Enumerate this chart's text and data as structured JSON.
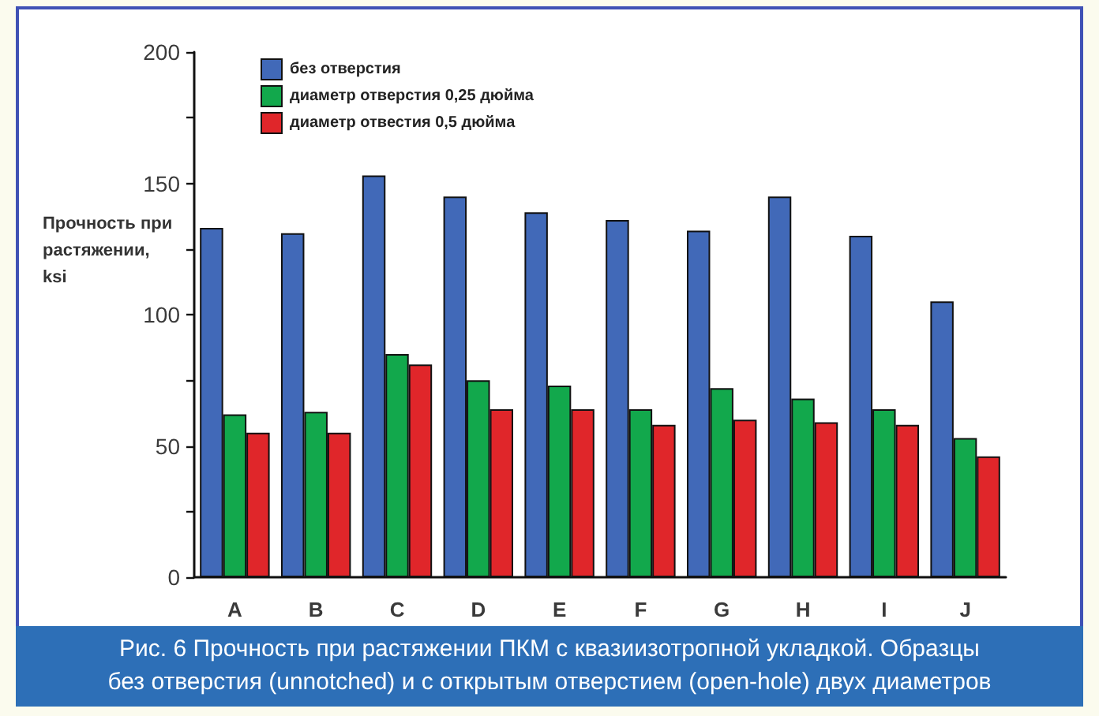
{
  "chart_data": {
    "type": "bar",
    "ylabel": "Прочность при растяжении, ksi",
    "categories": [
      "A",
      "B",
      "C",
      "D",
      "E",
      "F",
      "G",
      "H",
      "I",
      "J"
    ],
    "series": [
      {
        "name": "без отверстия",
        "color": "#4169b8",
        "values": [
          133,
          131,
          153,
          145,
          139,
          136,
          132,
          145,
          130,
          105
        ]
      },
      {
        "name": "диаметр отверстия 0,25 дюйма",
        "color": "#12a84c",
        "values": [
          62,
          63,
          85,
          75,
          73,
          64,
          72,
          68,
          64,
          53
        ]
      },
      {
        "name": "диаметр отвестия 0,5 дюйма",
        "color": "#e0262a",
        "values": [
          55,
          55,
          81,
          64,
          64,
          58,
          60,
          59,
          58,
          46
        ]
      }
    ],
    "ylim": [
      0,
      200
    ],
    "yticks": [
      0,
      {
        "value": 25,
        "label": null
      },
      50,
      {
        "value": 75,
        "label": null
      },
      100,
      {
        "value": 125,
        "label": null
      },
      150,
      {
        "value": 175,
        "label": null
      },
      200
    ],
    "grid": false,
    "legend": "top left",
    "annotations": [
      "Рис. 6 Прочность при растяжении ПКМ с квазиизотропной укладкой. Образцы без отверстия (unnotched) и с открытым отверстием (open-hole) двух диаметров"
    ]
  }
}
